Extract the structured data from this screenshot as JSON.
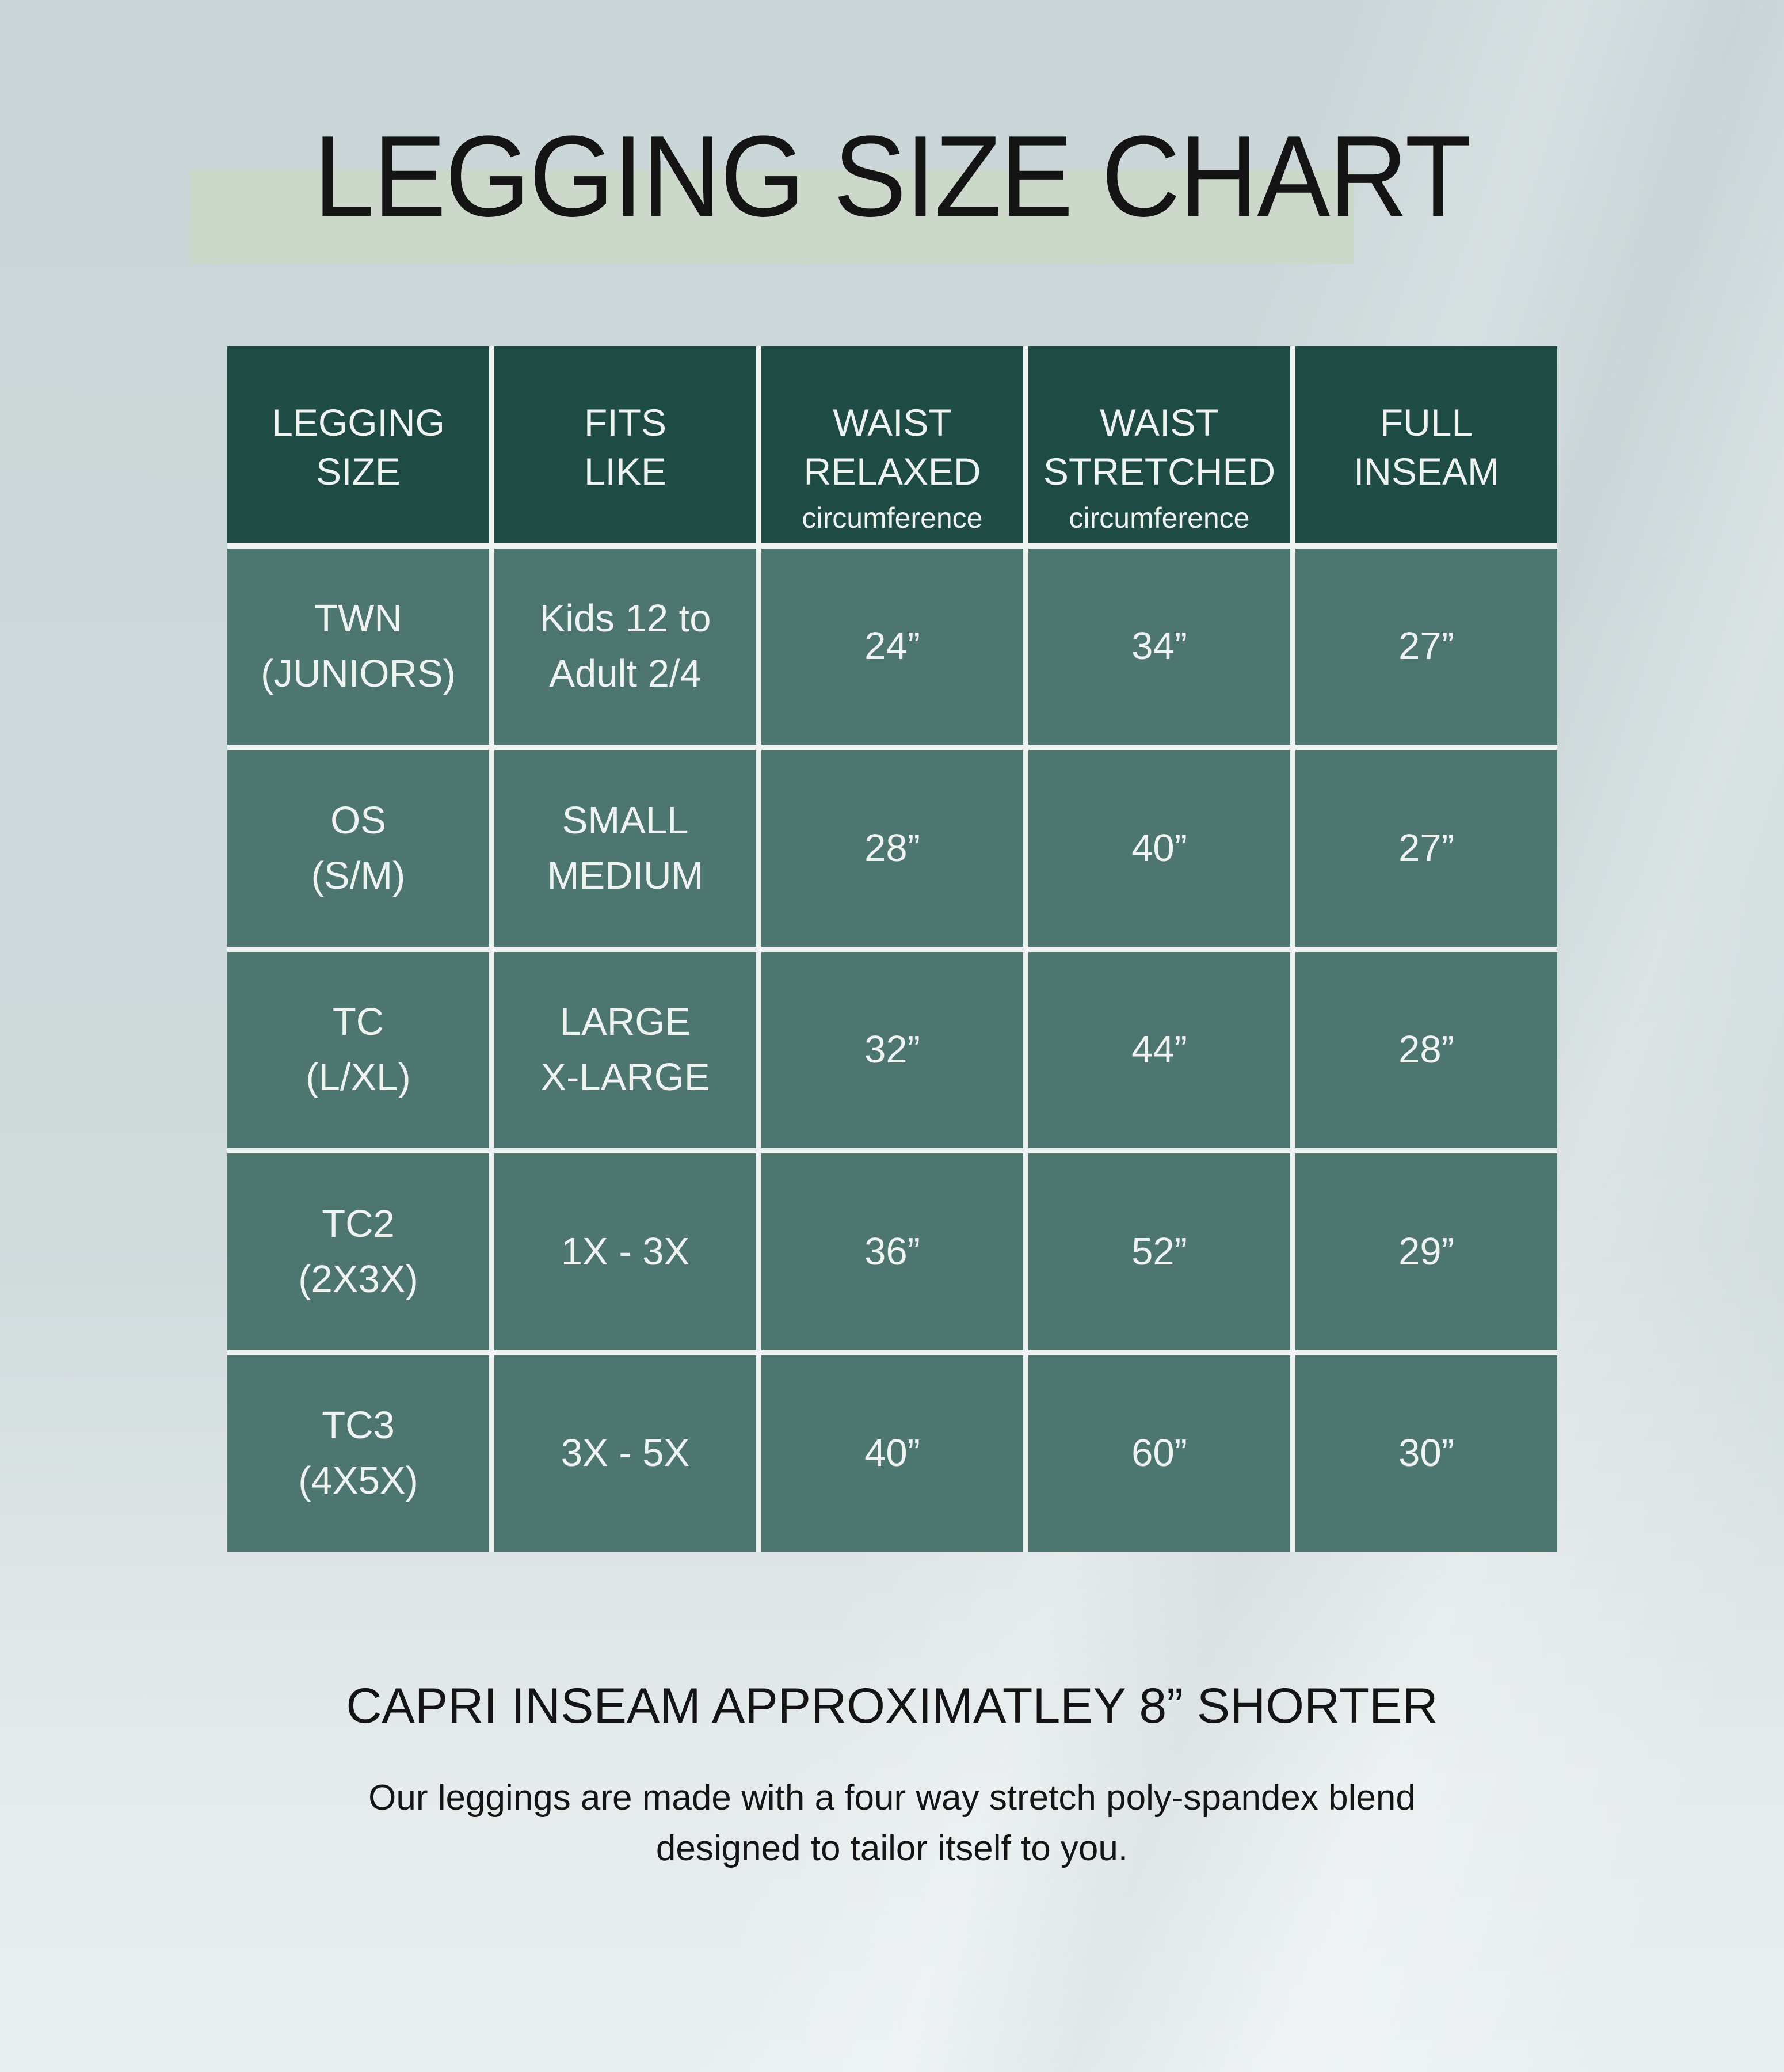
{
  "page": {
    "title": "LEGGING SIZE CHART"
  },
  "colors": {
    "background_top": "#ccd7d8",
    "background_bottom": "#e9eff0",
    "title_highlight": "#cbd8ca",
    "header_green": "#1f4b45",
    "cell_green": "#4d7670",
    "grid_line": "#eef2f1",
    "table_text": "#eef3f2",
    "title_text": "#141414"
  },
  "table": {
    "columns": [
      {
        "lines": [
          "LEGGING",
          "SIZE"
        ],
        "subline": ""
      },
      {
        "lines": [
          "FITS",
          "LIKE"
        ],
        "subline": ""
      },
      {
        "lines": [
          "WAIST",
          "RELAXED"
        ],
        "subline": "circumference"
      },
      {
        "lines": [
          "WAIST",
          "STRETCHED"
        ],
        "subline": "circumference"
      },
      {
        "lines": [
          "FULL",
          "INSEAM"
        ],
        "subline": ""
      }
    ],
    "rows": [
      {
        "size": [
          "TWN",
          "(JUNIORS)"
        ],
        "fits": [
          "Kids 12 to",
          "Adult 2/4"
        ],
        "waist_relaxed": "24”",
        "waist_stretched": "34”",
        "full_inseam": "27”"
      },
      {
        "size": [
          "OS",
          "(S/M)"
        ],
        "fits": [
          "SMALL",
          "MEDIUM"
        ],
        "waist_relaxed": "28”",
        "waist_stretched": "40”",
        "full_inseam": "27”"
      },
      {
        "size": [
          "TC",
          "(L/XL)"
        ],
        "fits": [
          "LARGE",
          "X-LARGE"
        ],
        "waist_relaxed": "32”",
        "waist_stretched": "44”",
        "full_inseam": "28”"
      },
      {
        "size": [
          "TC2",
          "(2X3X)"
        ],
        "fits": [
          "1X - 3X"
        ],
        "waist_relaxed": "36”",
        "waist_stretched": "52”",
        "full_inseam": "29”"
      },
      {
        "size": [
          "TC3",
          "(4X5X)"
        ],
        "fits": [
          "3X - 5X"
        ],
        "waist_relaxed": "40”",
        "waist_stretched": "60”",
        "full_inseam": "30”"
      }
    ]
  },
  "footer": {
    "capri_note": "CAPRI INSEAM APPROXIMATLEY 8” SHORTER",
    "description_lines": [
      "Our leggings are made with a four way stretch poly-spandex blend",
      "designed to tailor itself to you."
    ]
  },
  "chart_data": {
    "type": "table",
    "title": "LEGGING SIZE CHART",
    "columns": [
      "LEGGING SIZE",
      "FITS LIKE",
      "WAIST RELAXED circumference",
      "WAIST STRETCHED circumference",
      "FULL INSEAM"
    ],
    "rows": [
      [
        "TWN (JUNIORS)",
        "Kids 12 to Adult 2/4",
        "24”",
        "34”",
        "27”"
      ],
      [
        "OS (S/M)",
        "SMALL MEDIUM",
        "28”",
        "40”",
        "27”"
      ],
      [
        "TC (L/XL)",
        "LARGE X-LARGE",
        "32”",
        "44”",
        "28”"
      ],
      [
        "TC2 (2X3X)",
        "1X - 3X",
        "36”",
        "52”",
        "29”"
      ],
      [
        "TC3 (4X5X)",
        "3X - 5X",
        "40”",
        "60”",
        "30”"
      ]
    ],
    "notes": [
      "CAPRI INSEAM APPROXIMATLEY 8” SHORTER",
      "Our leggings are made with a four way stretch poly-spandex blend designed to tailor itself to you."
    ]
  }
}
